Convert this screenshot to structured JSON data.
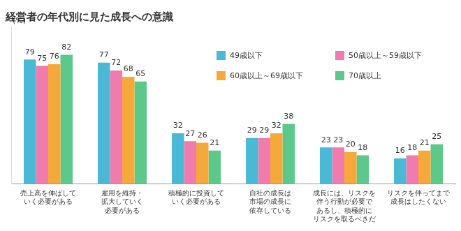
{
  "chart_data": {
    "type": "bar",
    "title": "経営者の年代別に見た成長への意識",
    "ylabel": "(%)",
    "categories": [
      "売上高を伸ばして\nいく必要がある",
      "雇用を維持・\n拡大していく\n必要がある",
      "積極的に投資して\nいく必要がある",
      "自社の成長は\n市場の成長に\n依存している",
      "成長には、リスクを\n伴う行動が必要で\nあるし、積極的に\nリスクを取るべきだ",
      "リスクを伴ってまで\n成長はしたくない"
    ],
    "series": [
      {
        "name": "49歳以下",
        "color": "#4ab9d6",
        "values": [
          79,
          77,
          32,
          29,
          23,
          16
        ]
      },
      {
        "name": "50歳以上～59歳以下",
        "color": "#f07cad",
        "values": [
          75,
          72,
          27,
          29,
          23,
          18
        ]
      },
      {
        "name": "60歳以上～69歳以下",
        "color": "#f5a93a",
        "values": [
          76,
          68,
          26,
          32,
          20,
          21
        ]
      },
      {
        "name": "70歳以上",
        "color": "#5cc98a",
        "values": [
          82,
          65,
          21,
          38,
          18,
          25
        ]
      }
    ],
    "ylim": [
      0,
      100
    ],
    "grid": false,
    "legend": "upper right",
    "data_labels": true,
    "tick_labels": "x"
  }
}
